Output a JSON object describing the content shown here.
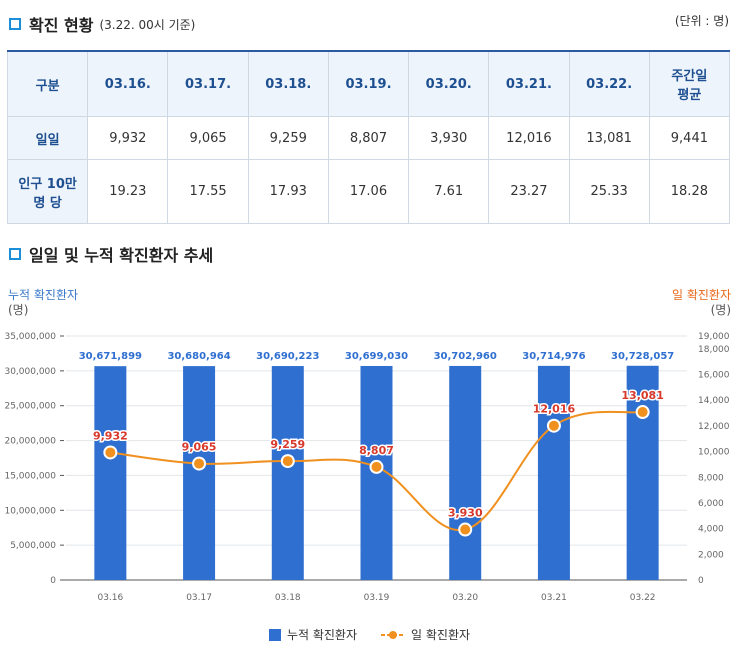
{
  "section1": {
    "title": "확진 현황",
    "subtitle": "(3.22. 00시 기준)",
    "unit": "(단위 : 명)"
  },
  "table": {
    "header": [
      "구분",
      "03.16.",
      "03.17.",
      "03.18.",
      "03.19.",
      "03.20.",
      "03.21.",
      "03.22.",
      "주간일\n평균"
    ],
    "rows": [
      {
        "label": "일일",
        "values": [
          "9,932",
          "9,065",
          "9,259",
          "8,807",
          "3,930",
          "12,016",
          "13,081",
          "9,441"
        ]
      },
      {
        "label": "인구 10만\n명 당",
        "values": [
          "19.23",
          "17.55",
          "17.93",
          "17.06",
          "7.61",
          "23.27",
          "25.33",
          "18.28"
        ]
      }
    ]
  },
  "section2": {
    "title": "일일 및 누적 확진환자 추세"
  },
  "chart_data": {
    "type": "bar",
    "categories": [
      "03.16",
      "03.17",
      "03.18",
      "03.19",
      "03.20",
      "03.21",
      "03.22"
    ],
    "series": [
      {
        "name": "누적 확진환자",
        "type": "bar",
        "axis": "left",
        "color": "#2f6fd0",
        "values": [
          30671899,
          30680964,
          30690223,
          30699030,
          30702960,
          30714976,
          30728057
        ],
        "labels": [
          "30,671,899",
          "30,680,964",
          "30,690,223",
          "30,699,030",
          "30,702,960",
          "30,714,976",
          "30,728,057"
        ]
      },
      {
        "name": "일 확진환자",
        "type": "line",
        "axis": "right",
        "color": "#f0901e",
        "values": [
          9932,
          9065,
          9259,
          8807,
          3930,
          12016,
          13081
        ],
        "labels": [
          "9,932",
          "9,065",
          "9,259",
          "8,807",
          "3,930",
          "12,016",
          "13,081"
        ]
      }
    ],
    "left_axis": {
      "label": "누적 확진환자",
      "unit": "(명)",
      "ylim": [
        0,
        35000000
      ],
      "ticks": [
        0,
        5000000,
        10000000,
        15000000,
        20000000,
        25000000,
        30000000,
        35000000
      ],
      "tick_labels": [
        "0",
        "5,000,000",
        "10,000,000",
        "15,000,000",
        "20,000,000",
        "25,000,000",
        "30,000,000",
        "35,000,000"
      ]
    },
    "right_axis": {
      "label": "일 확진환자",
      "unit": "(명)",
      "ylim": [
        0,
        19000
      ],
      "ticks": [
        0,
        2000,
        4000,
        6000,
        8000,
        10000,
        12000,
        14000,
        16000,
        18000,
        19000
      ],
      "tick_labels": [
        "0",
        "2,000",
        "4,000",
        "6,000",
        "8,000",
        "10,000",
        "12,000",
        "14,000",
        "16,000",
        "18,000",
        "19,000"
      ]
    },
    "grid": true,
    "legend": "bottom-center",
    "colors": {
      "bar": "#2f6fd0",
      "line": "#f0901e",
      "bar_label": "#2f6fd0",
      "line_label": "#d8392b"
    }
  }
}
